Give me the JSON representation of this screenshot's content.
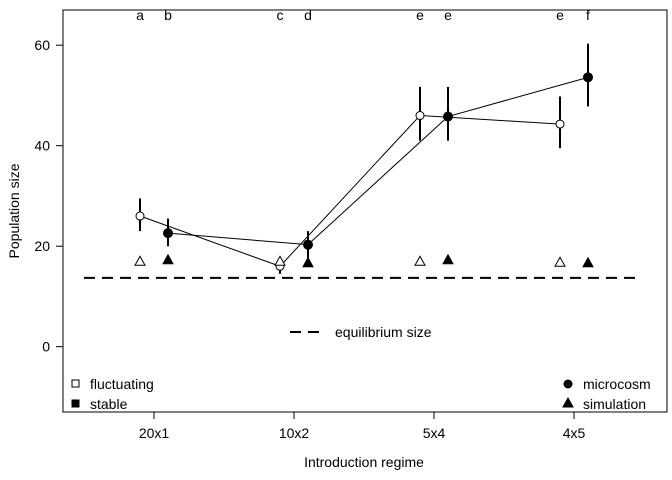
{
  "chart_data": {
    "type": "scatter",
    "xlabel": "Introduction regime",
    "ylabel": "Population size",
    "categories": [
      "20x1",
      "10x2",
      "5x4",
      "4x5"
    ],
    "ylim": [
      -13,
      67
    ],
    "yticks": [
      0,
      20,
      40,
      60
    ],
    "grid": false,
    "equilibrium": {
      "value": 13.7,
      "label": "equilibrium size"
    },
    "group_letters": [
      "a",
      "b",
      "c",
      "d",
      "e",
      "e",
      "e",
      "f"
    ],
    "series": [
      {
        "name": "fluctuating",
        "kind": "microcosm",
        "values": [
          26.0,
          16.0,
          46.0,
          44.3
        ],
        "err_low": [
          23.0,
          14.5,
          41.0,
          39.5
        ],
        "err_high": [
          29.5,
          17.8,
          51.7,
          49.8
        ]
      },
      {
        "name": "stable",
        "kind": "microcosm",
        "values": [
          22.6,
          20.3,
          45.8,
          53.6
        ],
        "err_low": [
          20.0,
          17.7,
          41.0,
          47.8
        ],
        "err_high": [
          25.5,
          23.0,
          51.7,
          60.3
        ]
      },
      {
        "name": "fluctuating",
        "kind": "simulation",
        "values": [
          17.0,
          17.0,
          17.0,
          16.8
        ]
      },
      {
        "name": "stable",
        "kind": "simulation",
        "values": [
          17.3,
          16.7,
          17.3,
          16.7
        ]
      }
    ],
    "legend": {
      "left": [
        "fluctuating",
        "stable"
      ],
      "right": [
        "microcosm",
        "simulation"
      ]
    }
  }
}
